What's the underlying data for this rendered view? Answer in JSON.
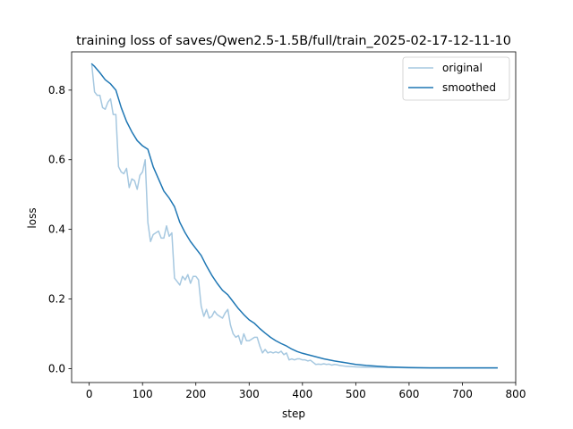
{
  "chart_data": {
    "type": "line",
    "title": "training loss of saves/Qwen2.5-1.5B/full/train_2025-02-17-12-11-10",
    "xlabel": "step",
    "ylabel": "loss",
    "xlim": [
      -33,
      800
    ],
    "ylim": [
      -0.04,
      0.91
    ],
    "xticks": [
      0,
      100,
      200,
      300,
      400,
      500,
      600,
      700,
      800
    ],
    "yticks": [
      0.0,
      0.2,
      0.4,
      0.6,
      0.8
    ],
    "grid": false,
    "legend_position": "top-right",
    "series": [
      {
        "name": "original",
        "color": "#a6c8e0",
        "x": [
          5,
          10,
          15,
          20,
          25,
          30,
          35,
          40,
          45,
          50,
          55,
          60,
          65,
          70,
          75,
          80,
          85,
          90,
          95,
          100,
          105,
          110,
          115,
          120,
          125,
          130,
          135,
          140,
          145,
          150,
          155,
          160,
          165,
          170,
          175,
          180,
          185,
          190,
          195,
          200,
          205,
          210,
          215,
          220,
          225,
          230,
          235,
          240,
          245,
          250,
          255,
          260,
          265,
          270,
          275,
          280,
          285,
          290,
          295,
          300,
          305,
          310,
          315,
          320,
          325,
          330,
          335,
          340,
          345,
          350,
          355,
          360,
          365,
          370,
          375,
          380,
          385,
          390,
          395,
          400,
          405,
          410,
          415,
          420,
          425,
          430,
          435,
          440,
          445,
          450,
          455,
          460,
          465,
          470,
          475,
          480,
          490,
          500,
          520,
          540,
          560,
          580,
          600,
          620,
          640,
          660,
          680,
          700,
          720,
          740,
          765
        ],
        "y": [
          0.87,
          0.795,
          0.785,
          0.785,
          0.75,
          0.745,
          0.765,
          0.775,
          0.73,
          0.73,
          0.58,
          0.565,
          0.56,
          0.575,
          0.52,
          0.545,
          0.54,
          0.515,
          0.555,
          0.565,
          0.6,
          0.42,
          0.365,
          0.385,
          0.39,
          0.395,
          0.375,
          0.375,
          0.41,
          0.38,
          0.39,
          0.26,
          0.25,
          0.24,
          0.265,
          0.255,
          0.27,
          0.245,
          0.265,
          0.265,
          0.255,
          0.18,
          0.15,
          0.17,
          0.145,
          0.15,
          0.165,
          0.155,
          0.15,
          0.145,
          0.16,
          0.17,
          0.125,
          0.1,
          0.09,
          0.095,
          0.07,
          0.1,
          0.08,
          0.08,
          0.085,
          0.09,
          0.09,
          0.065,
          0.045,
          0.055,
          0.045,
          0.048,
          0.045,
          0.048,
          0.045,
          0.05,
          0.04,
          0.045,
          0.025,
          0.028,
          0.025,
          0.028,
          0.028,
          0.025,
          0.025,
          0.022,
          0.024,
          0.018,
          0.012,
          0.013,
          0.012,
          0.014,
          0.012,
          0.013,
          0.01,
          0.012,
          0.011,
          0.009,
          0.008,
          0.007,
          0.006,
          0.005,
          0.004,
          0.004,
          0.003,
          0.003,
          0.002,
          0.002,
          0.002,
          0.002,
          0.002,
          0.002,
          0.002,
          0.002,
          0.002
        ]
      },
      {
        "name": "smoothed",
        "color": "#1f77b4",
        "x": [
          5,
          10,
          20,
          30,
          40,
          50,
          60,
          70,
          80,
          90,
          100,
          110,
          120,
          130,
          140,
          150,
          160,
          170,
          180,
          190,
          200,
          210,
          220,
          230,
          240,
          250,
          260,
          270,
          280,
          290,
          300,
          310,
          320,
          330,
          340,
          350,
          360,
          370,
          380,
          390,
          400,
          420,
          440,
          460,
          480,
          500,
          520,
          540,
          560,
          580,
          600,
          640,
          680,
          720,
          765
        ],
        "y": [
          0.875,
          0.868,
          0.85,
          0.83,
          0.818,
          0.8,
          0.75,
          0.71,
          0.68,
          0.655,
          0.64,
          0.63,
          0.58,
          0.545,
          0.51,
          0.49,
          0.465,
          0.42,
          0.39,
          0.365,
          0.345,
          0.325,
          0.295,
          0.268,
          0.245,
          0.225,
          0.212,
          0.192,
          0.172,
          0.155,
          0.14,
          0.13,
          0.115,
          0.102,
          0.09,
          0.08,
          0.072,
          0.065,
          0.056,
          0.049,
          0.044,
          0.036,
          0.028,
          0.022,
          0.017,
          0.012,
          0.009,
          0.007,
          0.005,
          0.004,
          0.003,
          0.002,
          0.002,
          0.002,
          0.002
        ]
      }
    ]
  }
}
